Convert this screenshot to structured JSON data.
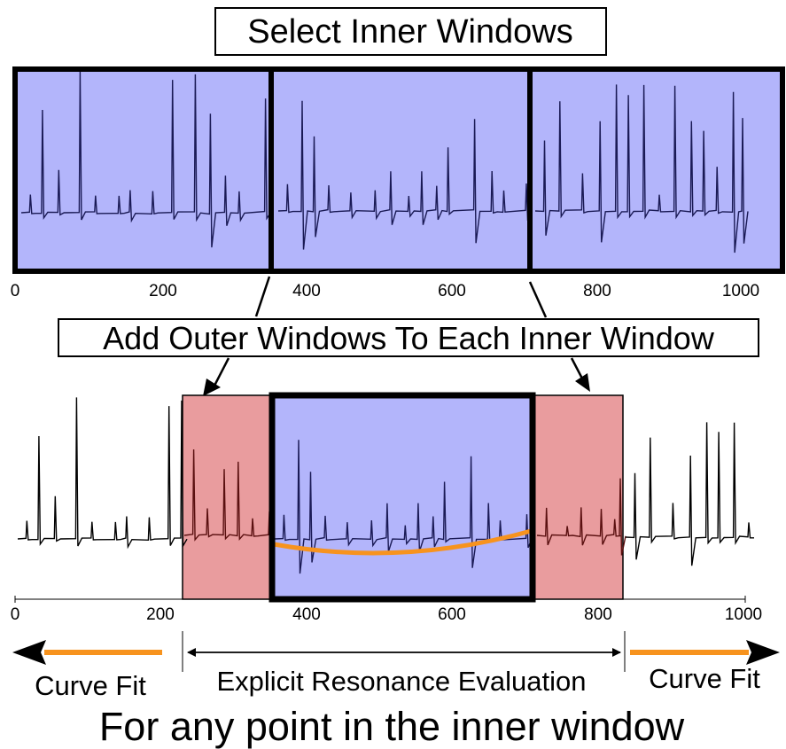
{
  "top_title": "Select Inner Windows",
  "mid_title": "Add Outer Windows To Each Inner Window",
  "top_ticks": [
    "0",
    "200",
    "400",
    "600",
    "800",
    "1000"
  ],
  "bottom_ticks": [
    "0",
    "200",
    "400",
    "600",
    "800",
    "1000"
  ],
  "axis_domain": [
    0,
    1000
  ],
  "inner_window_boundaries": [
    347,
    695
  ],
  "outer_window_ranges": [
    [
      230,
      347
    ],
    [
      695,
      835
    ]
  ],
  "left_label": "Curve Fit",
  "center_label": "Explicit Resonance Evaluation",
  "right_label": "Curve Fit",
  "bottom_caption": "For any point in the inner window",
  "colors": {
    "inner_window": "#b3b5fb",
    "outer_window": "#e99c9e",
    "signal_inner": "#1a1a55",
    "signal_outer": "#000000",
    "curve_fit": "#f7931e",
    "frame": "#000000"
  }
}
